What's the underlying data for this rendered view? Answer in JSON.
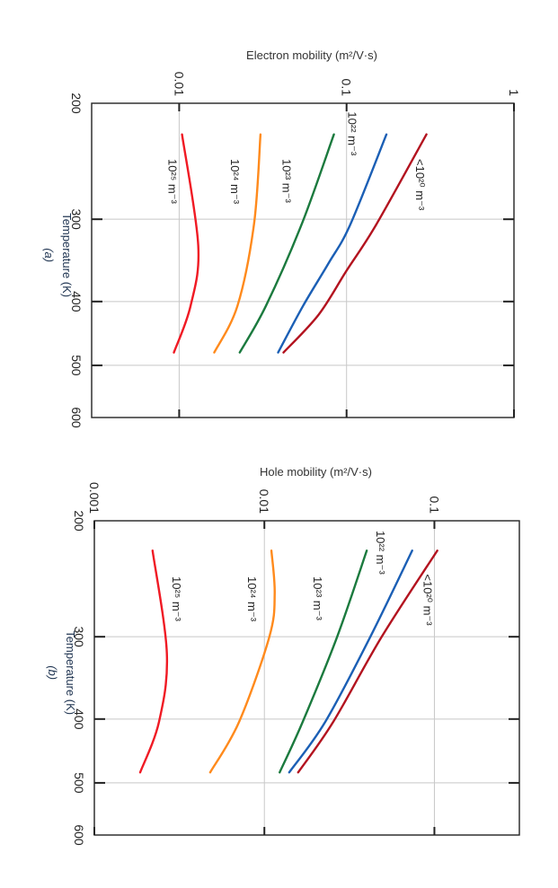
{
  "chart_data": [
    {
      "type": "line",
      "panel": "(a)",
      "title": "Electron mobility (m²/V·s)",
      "ylabel": "Temperature (K)",
      "x_scale": "log",
      "x_range": [
        0.003,
        1
      ],
      "x_ticks": [
        "0.01",
        "0.1",
        "1"
      ],
      "x_tick_values": [
        0.01,
        0.1,
        1
      ],
      "y_scale": "log",
      "y_range": [
        200,
        600
      ],
      "y_ticks": [
        "200",
        "300",
        "400",
        "500",
        "600"
      ],
      "y_tick_values": [
        200,
        300,
        400,
        500,
        600
      ],
      "orientation": "rotated 90° clockwise",
      "grid": true,
      "series": [
        {
          "name": "<10²⁰ m⁻³",
          "color": "#b3131f",
          "T": [
            223,
            306,
            359,
            419,
            478
          ],
          "mobility": [
            0.3,
            0.15,
            0.1,
            0.068,
            0.042
          ]
        },
        {
          "name": "10²² m⁻³",
          "color": "#1b5fb5",
          "T": [
            223,
            306,
            350,
            406,
            478
          ],
          "mobility": [
            0.173,
            0.105,
            0.078,
            0.055,
            0.039
          ]
        },
        {
          "name": "10²³ m⁻³",
          "color": "#1b7a3e",
          "T": [
            223,
            305,
            406,
            478
          ],
          "mobility": [
            0.084,
            0.054,
            0.033,
            0.023
          ]
        },
        {
          "name": "10²⁴ m⁻³",
          "color": "#ff8a1c",
          "T": [
            223,
            305,
            406,
            478
          ],
          "mobility": [
            0.0306,
            0.028,
            0.0223,
            0.0162
          ]
        },
        {
          "name": "10²⁵ m⁻³",
          "color": "#f01a24",
          "T": [
            223,
            329,
            406,
            478
          ],
          "mobility": [
            0.0104,
            0.013,
            0.0117,
            0.0093
          ]
        }
      ]
    },
    {
      "type": "line",
      "panel": "(b)",
      "title": "Hole mobility (m²/V·s)",
      "ylabel": "Temperature (K)",
      "x_scale": "log",
      "x_range": [
        0.001,
        0.316
      ],
      "x_ticks": [
        "0.001",
        "0.01",
        "0.1"
      ],
      "x_tick_values": [
        0.001,
        0.01,
        0.1
      ],
      "y_scale": "log",
      "y_range": [
        200,
        600
      ],
      "y_ticks": [
        "200",
        "300",
        "400",
        "500",
        "600"
      ],
      "y_tick_values": [
        200,
        300,
        400,
        500,
        600
      ],
      "orientation": "rotated 90° clockwise",
      "grid": true,
      "series": [
        {
          "name": "<10²⁰ m⁻³",
          "color": "#b3131f",
          "T": [
            222,
            300,
            404,
            482
          ],
          "mobility": [
            0.104,
            0.049,
            0.0254,
            0.0158
          ]
        },
        {
          "name": "10²² m⁻³",
          "color": "#1b5fb5",
          "T": [
            222,
            300,
            404,
            482
          ],
          "mobility": [
            0.074,
            0.042,
            0.0228,
            0.014
          ]
        },
        {
          "name": "10²³ m⁻³",
          "color": "#1b7a3e",
          "T": [
            222,
            300,
            404,
            482
          ],
          "mobility": [
            0.04,
            0.0268,
            0.0168,
            0.0123
          ]
        },
        {
          "name": "10²⁴ m⁻³",
          "color": "#ff8a1c",
          "T": [
            222,
            258,
            300,
            404,
            482
          ],
          "mobility": [
            0.011,
            0.0115,
            0.0107,
            0.0071,
            0.0048
          ]
        },
        {
          "name": "10²⁵ m⁻³",
          "color": "#f01a24",
          "T": [
            222,
            318,
            404,
            482
          ],
          "mobility": [
            0.0022,
            0.00267,
            0.0024,
            0.00186
          ]
        }
      ]
    }
  ]
}
